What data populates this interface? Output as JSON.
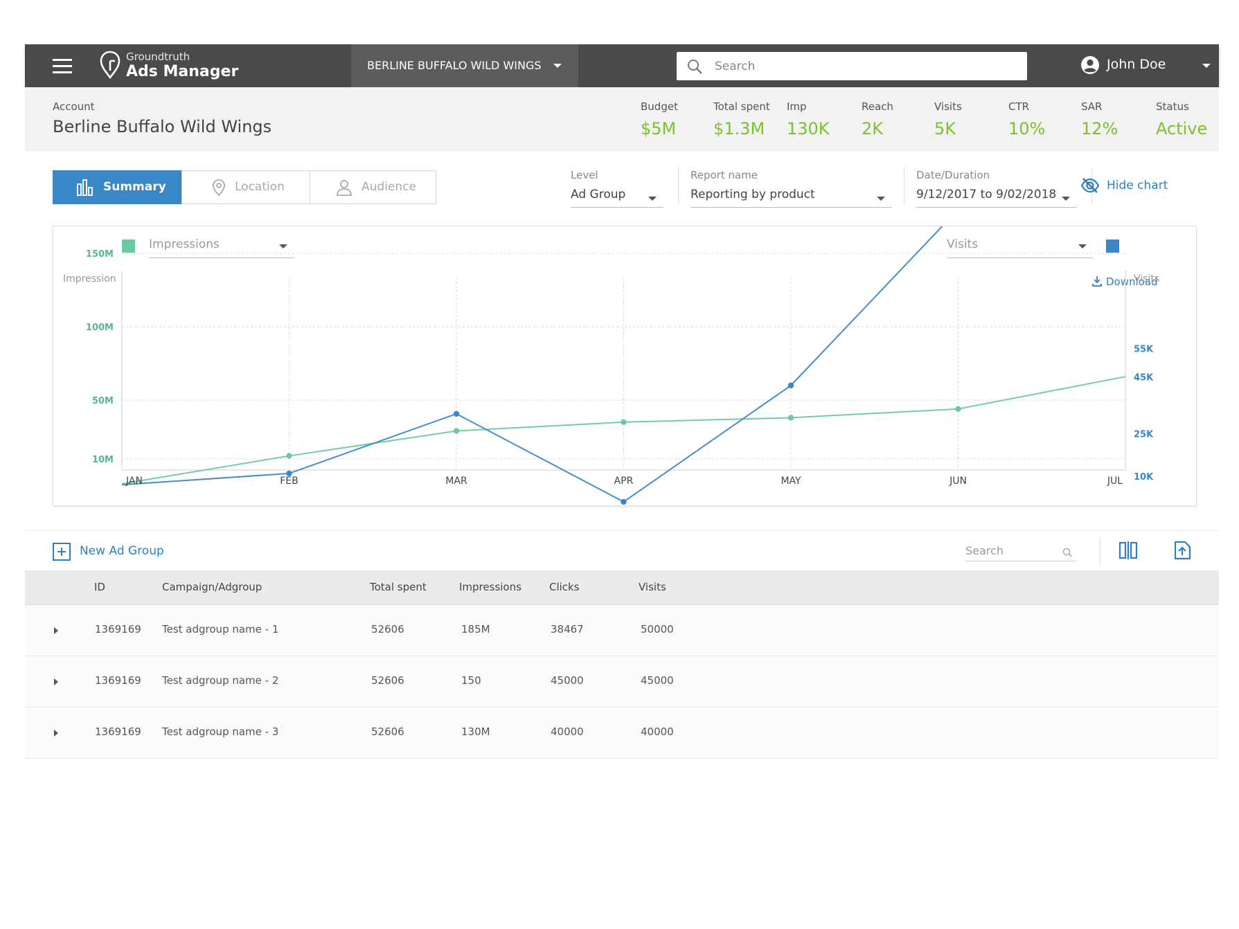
{
  "topbar": {
    "brand_small": "Groundtruth",
    "brand_big": "Ads Manager",
    "account_selector": "BERLINE BUFFALO WILD WINGS",
    "search_placeholder": "Search",
    "user_name": "John Doe"
  },
  "account": {
    "label": "Account",
    "name": "Berline Buffalo Wild Wings",
    "metrics": [
      {
        "label": "Budget",
        "value": "$5M"
      },
      {
        "label": "Total spent",
        "value": "$1.3M"
      },
      {
        "label": "Imp",
        "value": "130K"
      },
      {
        "label": "Reach",
        "value": "2K"
      },
      {
        "label": "Visits",
        "value": "5K"
      },
      {
        "label": "CTR",
        "value": "10%"
      },
      {
        "label": "SAR",
        "value": "12%"
      },
      {
        "label": "Status",
        "value": "Active"
      }
    ]
  },
  "tabs": [
    {
      "label": "Summary",
      "icon": "bar-chart-icon",
      "active": true
    },
    {
      "label": "Location",
      "icon": "location-pin-icon",
      "active": false
    },
    {
      "label": "Audience",
      "icon": "person-icon",
      "active": false
    }
  ],
  "filters": {
    "level": {
      "label": "Level",
      "value": "Ad Group"
    },
    "report": {
      "label": "Report name",
      "value": "Reporting by product"
    },
    "date": {
      "label": "Date/Duration",
      "value": "9/12/2017 to 9/02/2018"
    },
    "hide_chart": "Hide chart"
  },
  "chart": {
    "left_metric": "Impressions",
    "right_metric": "Visits",
    "download": "Download",
    "colors": {
      "impressions": "#6cc9a3",
      "visits": "#3a87c8"
    }
  },
  "chart_data": {
    "type": "line",
    "categories": [
      "JAN",
      "FEB",
      "MAR",
      "APR",
      "MAY",
      "JUN",
      "JUL"
    ],
    "ylabel": "Impression",
    "y2label": "Visits",
    "y_ticks": [
      {
        "label": "150M",
        "value": 150
      },
      {
        "label": "100M",
        "value": 100
      },
      {
        "label": "50M",
        "value": 50
      },
      {
        "label": "10M",
        "value": 10
      }
    ],
    "y2_ticks": [
      {
        "label": "55K",
        "value": 55
      },
      {
        "label": "45K",
        "value": 45
      },
      {
        "label": "25K",
        "value": 25
      },
      {
        "label": "10K",
        "value": 10
      }
    ],
    "series": [
      {
        "name": "Impressions",
        "axis": "left",
        "values": [
          -7,
          12,
          29,
          35,
          38,
          44,
          66
        ]
      },
      {
        "name": "Visits",
        "axis": "right",
        "values": [
          7,
          11,
          32,
          1,
          42,
          104,
          104
        ]
      }
    ],
    "grid": true
  },
  "table": {
    "new_button": "New Ad Group",
    "search_placeholder": "Search",
    "columns": [
      "ID",
      "Campaign/Adgroup",
      "Total spent",
      "Impressions",
      "Clicks",
      "Visits"
    ],
    "rows": [
      [
        "1369169",
        "Test adgroup name - 1",
        "52606",
        "185M",
        "38467",
        "50000"
      ],
      [
        "1369169",
        "Test adgroup name - 2",
        "52606",
        "150",
        "45000",
        "45000"
      ],
      [
        "1369169",
        "Test adgroup name - 3",
        "52606",
        "130M",
        "40000",
        "40000"
      ]
    ]
  }
}
